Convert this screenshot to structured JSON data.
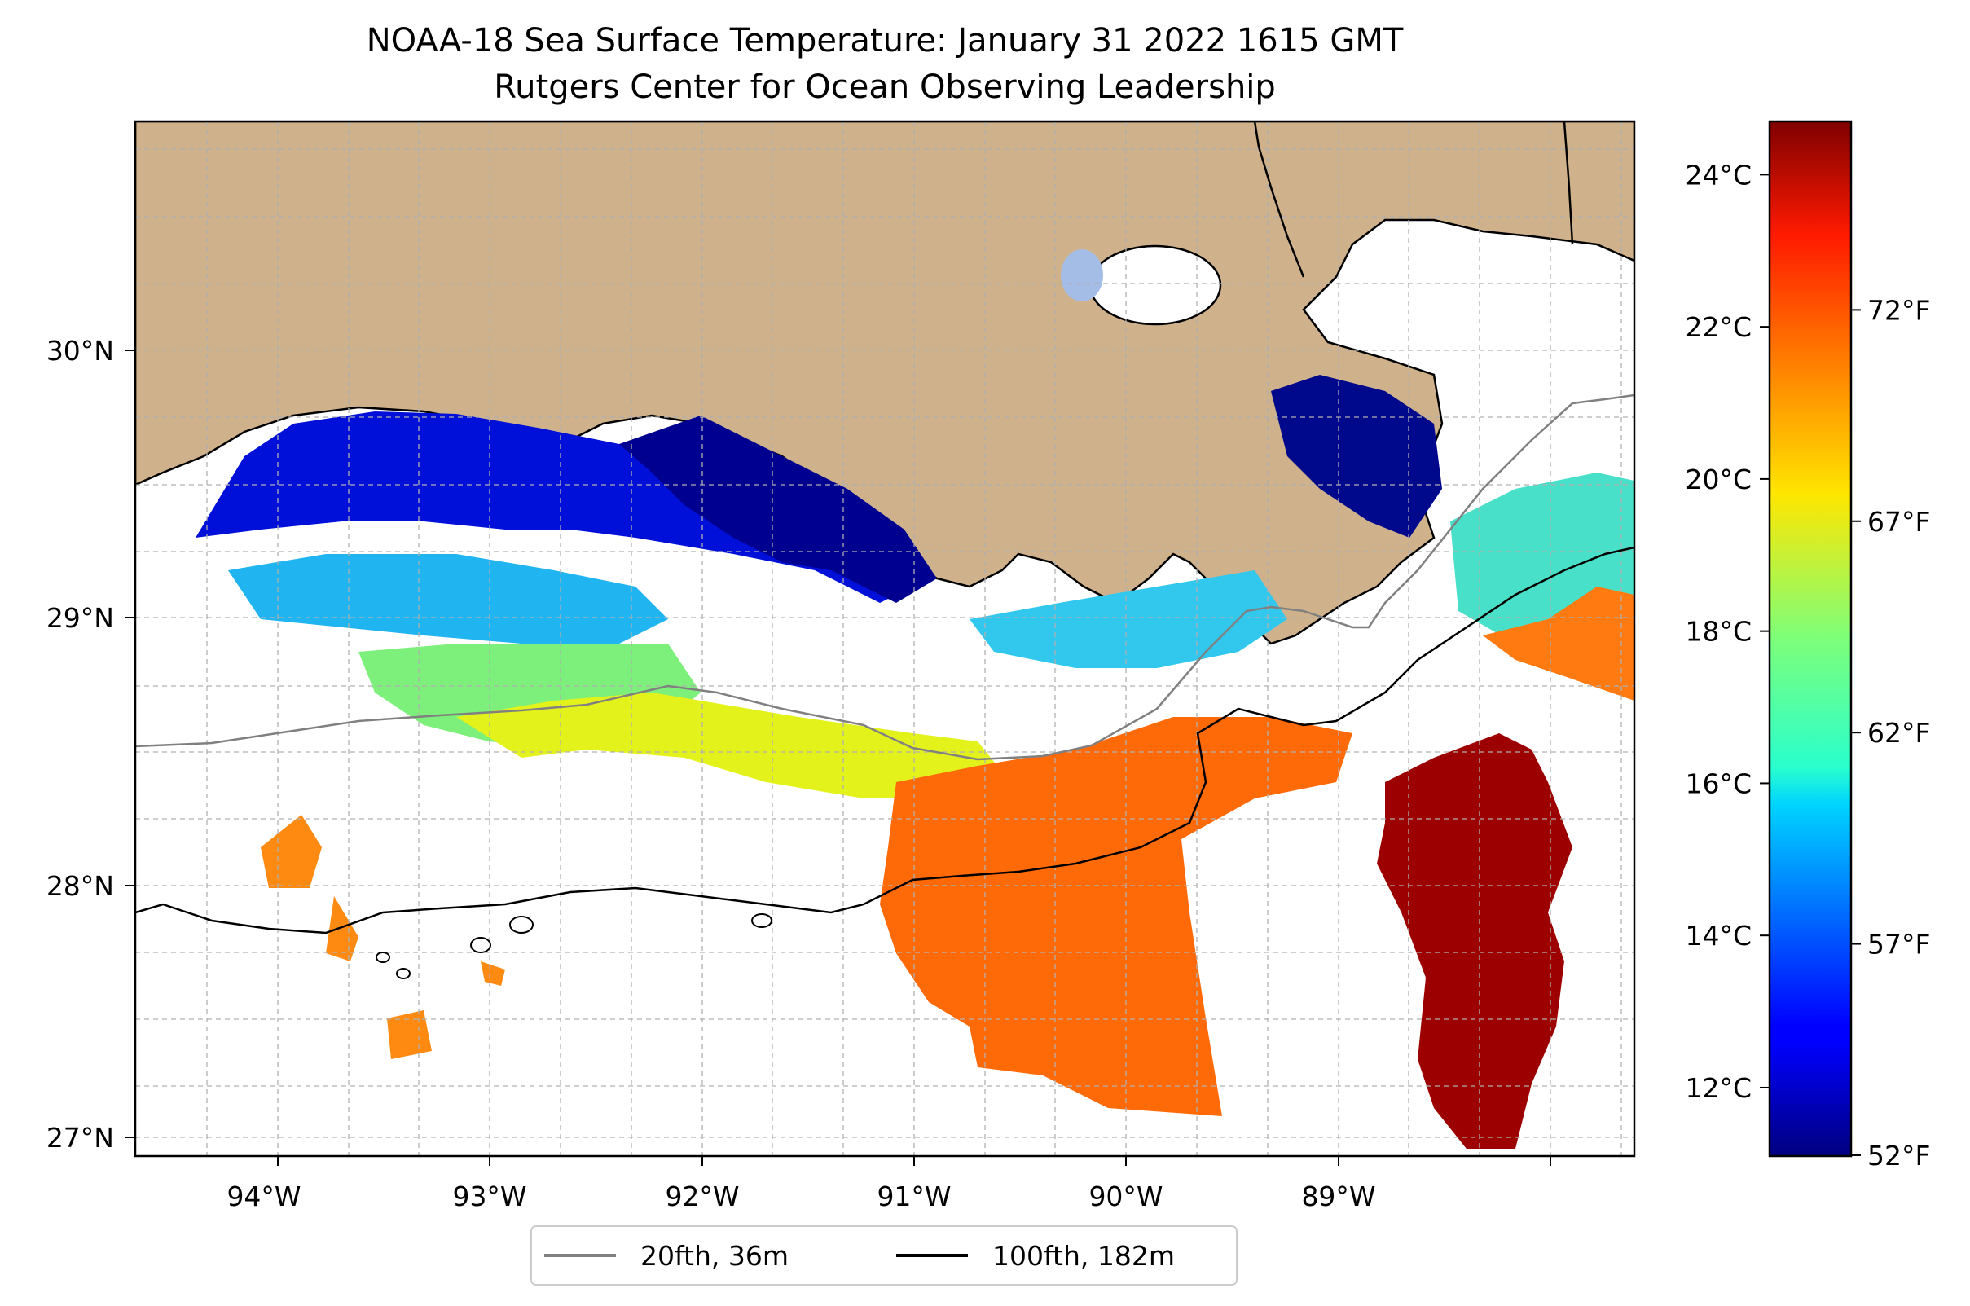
{
  "title": {
    "line1": "NOAA-18 Sea Surface Temperature: January 31 2022 1615 GMT",
    "line2": "Rutgers Center for Ocean Observing Leadership"
  },
  "map": {
    "lon_range": [
      -94.55,
      -88.2
    ],
    "lat_range": [
      26.93,
      30.85
    ],
    "lon_ticks": [
      {
        "value": -94,
        "label": "94°W"
      },
      {
        "value": -93,
        "label": "93°W"
      },
      {
        "value": -92,
        "label": "92°W"
      },
      {
        "value": -91,
        "label": "91°W"
      },
      {
        "value": -90,
        "label": "90°W"
      },
      {
        "value": -89,
        "label": "89°W"
      }
    ],
    "lat_ticks": [
      {
        "value": 30,
        "label": "30°N"
      },
      {
        "value": 29,
        "label": "29°N"
      },
      {
        "value": 28,
        "label": "28°N"
      },
      {
        "value": 27,
        "label": "27°N"
      }
    ],
    "gridlines": "dashed",
    "colors": {
      "land": "#cfb28b",
      "ocean_nodata": "#ffffff",
      "lake": "#a4bde6",
      "isobath_20fth": "#808080",
      "isobath_100fth": "#000000"
    }
  },
  "legend": {
    "position": "bottom-center",
    "items": [
      {
        "label": "20fth, 36m",
        "color": "#808080"
      },
      {
        "label": "100fth, 182m",
        "color": "#000000"
      }
    ]
  },
  "colorbar": {
    "colormap": "jet",
    "celsius_range": [
      11.1,
      24.7
    ],
    "celsius_ticks": [
      {
        "value": 12,
        "label": "12°C"
      },
      {
        "value": 14,
        "label": "14°C"
      },
      {
        "value": 16,
        "label": "16°C"
      },
      {
        "value": 18,
        "label": "18°C"
      },
      {
        "value": 20,
        "label": "20°C"
      },
      {
        "value": 22,
        "label": "22°C"
      },
      {
        "value": 24,
        "label": "24°C"
      }
    ],
    "fahrenheit_ticks": [
      {
        "value": 52,
        "label": "52°F"
      },
      {
        "value": 57,
        "label": "57°F"
      },
      {
        "value": 62,
        "label": "62°F"
      },
      {
        "value": 67,
        "label": "67°F"
      },
      {
        "value": 72,
        "label": "72°F"
      }
    ]
  }
}
